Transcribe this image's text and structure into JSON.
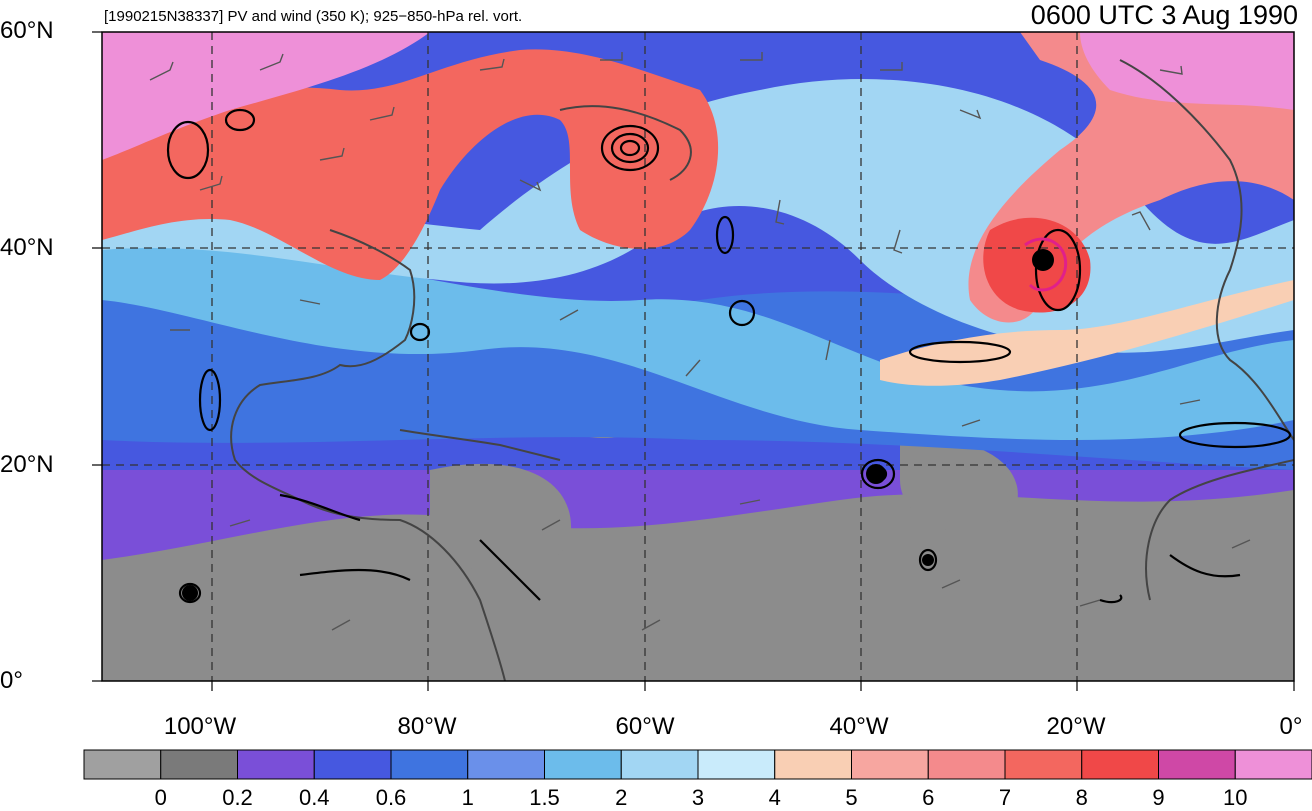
{
  "subtitle": "[1990215N38337] PV and wind (350 K); 925−850-hPa rel. vort.",
  "title": "0600 UTC 3 Aug 1990",
  "lat_labels": [
    "60°N",
    "40°N",
    "20°N",
    "0°"
  ],
  "lon_labels": [
    "100°W",
    "80°W",
    "60°W",
    "40°W",
    "20°W",
    "0°"
  ],
  "colorbar": {
    "labels": [
      "0",
      "0.2",
      "0.4",
      "0.6",
      "1",
      "1.5",
      "2",
      "3",
      "4",
      "5",
      "6",
      "7",
      "8",
      "9",
      "10"
    ],
    "colors": [
      "#a0a0a0",
      "#7a7a7a",
      "#7a4fd8",
      "#4658e0",
      "#3f74e0",
      "#6a90ea",
      "#6cbceb",
      "#a2d6f3",
      "#c9ebfb",
      "#f9cfb4",
      "#f7a6a0",
      "#f48a8c",
      "#f3675f",
      "#f04848",
      "#cf48a6",
      "#ee90d8"
    ]
  }
}
